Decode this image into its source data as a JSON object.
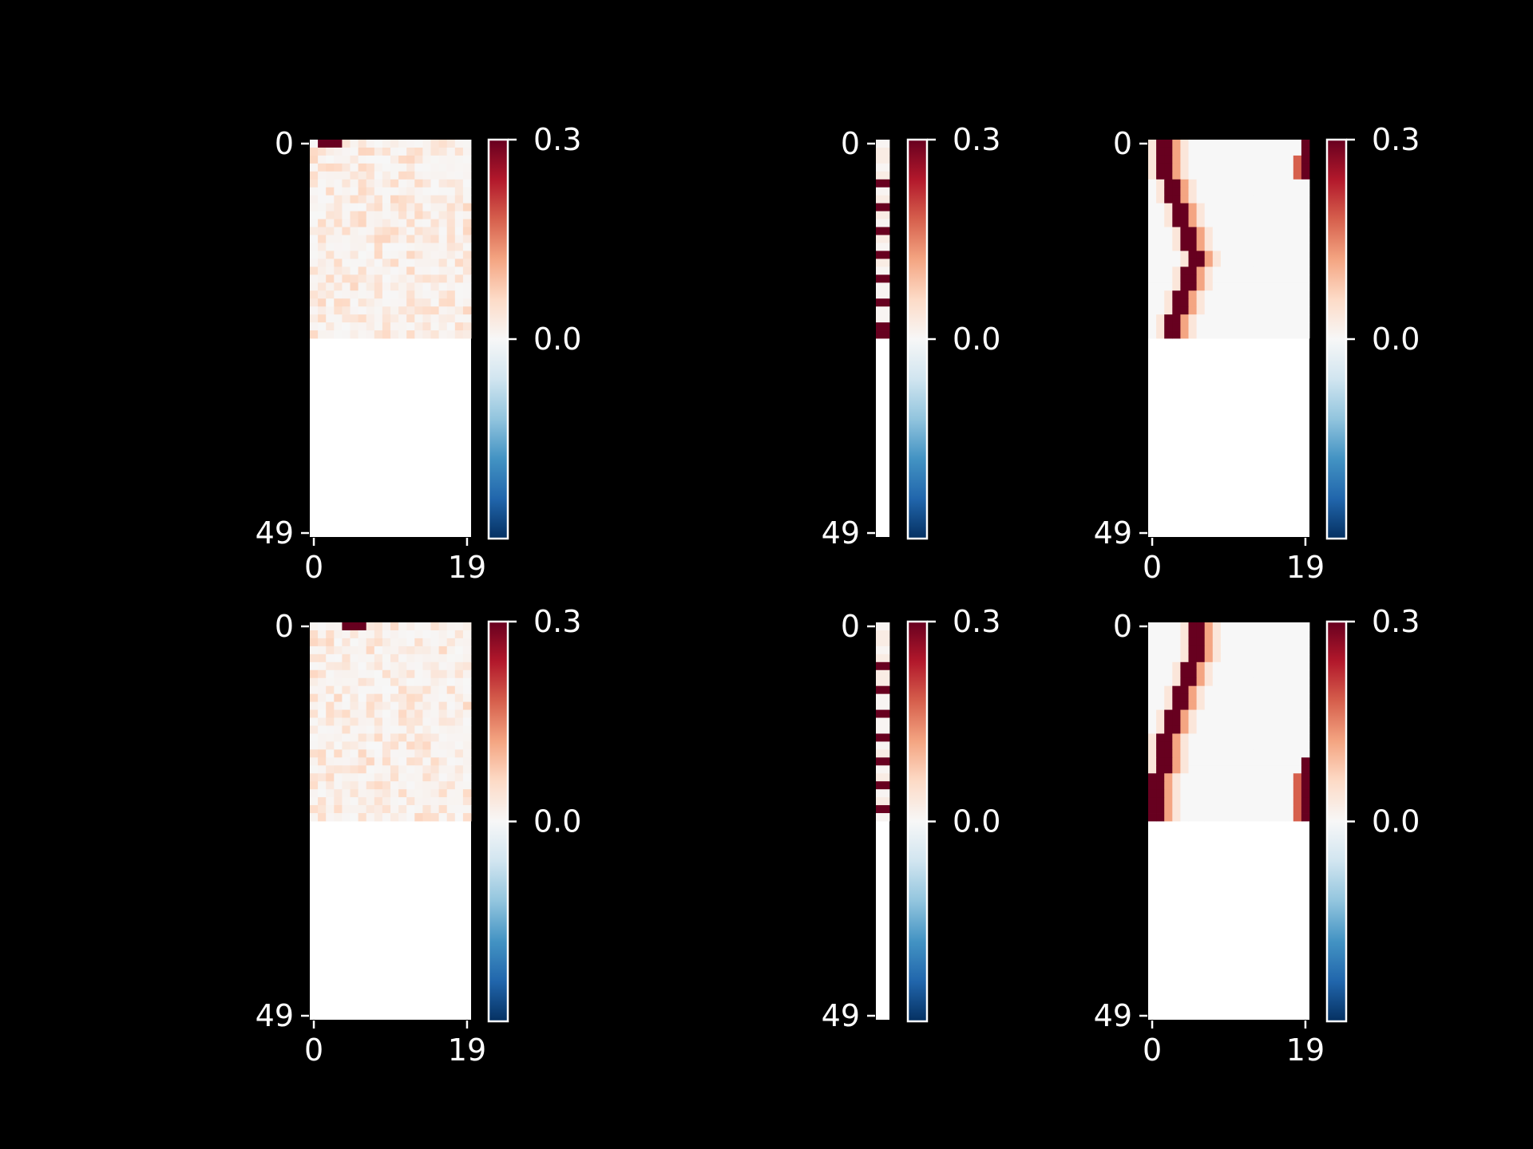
{
  "figure": {
    "background": "#000000",
    "foreground": "#ffffff"
  },
  "colormap": {
    "name": "RdBu_r",
    "stops": [
      "#053061",
      "#2166ac",
      "#4393c3",
      "#92c5de",
      "#d1e5f0",
      "#f7f7f7",
      "#fddbc7",
      "#f4a582",
      "#d6604d",
      "#b2182b",
      "#67001f"
    ]
  },
  "chart_data": [
    {
      "type": "heatmap",
      "panel": "top-left",
      "n_rows": 50,
      "n_cols": 20,
      "filled_rows": 25,
      "x_ticks": [
        "0",
        "19"
      ],
      "y_ticks": [
        "0",
        "49"
      ],
      "vmin": -0.25,
      "vmax": 0.25,
      "colorbar_ticks": [
        "0.3",
        "0.0"
      ],
      "pattern": "random",
      "hot_cells": [
        [
          0,
          1
        ],
        [
          0,
          2
        ],
        [
          0,
          3
        ]
      ]
    },
    {
      "type": "heatmap",
      "panel": "top-middle",
      "n_rows": 50,
      "n_cols": 1,
      "filled_rows": 25,
      "x_ticks": [],
      "y_ticks": [
        "0",
        "49"
      ],
      "vmin": -0.25,
      "vmax": 0.25,
      "colorbar_ticks": [
        "0.3",
        "0.0"
      ],
      "pattern": "column",
      "hot_rows": [
        5,
        8,
        11,
        14,
        17,
        20,
        23,
        24
      ]
    },
    {
      "type": "heatmap",
      "panel": "top-right",
      "n_rows": 50,
      "n_cols": 20,
      "filled_rows": 25,
      "x_ticks": [
        "0",
        "19"
      ],
      "y_ticks": [
        "0",
        "49"
      ],
      "vmin": -0.25,
      "vmax": 0.25,
      "colorbar_ticks": [
        "0.3",
        "0.0"
      ],
      "pattern": "path",
      "path_cols": [
        1,
        1,
        1,
        1,
        1,
        2,
        2,
        2,
        3,
        3,
        3,
        4,
        4,
        4,
        5,
        5,
        4,
        4,
        4,
        3,
        3,
        3,
        2,
        2,
        2
      ],
      "edge_col": 19,
      "edge_rows": [
        0,
        1,
        2,
        3,
        4
      ]
    },
    {
      "type": "heatmap",
      "panel": "bottom-left",
      "n_rows": 50,
      "n_cols": 20,
      "filled_rows": 25,
      "x_ticks": [
        "0",
        "19"
      ],
      "y_ticks": [
        "0",
        "49"
      ],
      "vmin": -0.25,
      "vmax": 0.25,
      "colorbar_ticks": [
        "0.3",
        "0.0"
      ],
      "pattern": "random",
      "hot_cells": [
        [
          0,
          4
        ],
        [
          0,
          5
        ],
        [
          0,
          6
        ]
      ]
    },
    {
      "type": "heatmap",
      "panel": "bottom-middle",
      "n_rows": 50,
      "n_cols": 1,
      "filled_rows": 25,
      "x_ticks": [],
      "y_ticks": [
        "0",
        "49"
      ],
      "vmin": -0.25,
      "vmax": 0.25,
      "colorbar_ticks": [
        "0.3",
        "0.0"
      ],
      "pattern": "column",
      "hot_rows": [
        5,
        8,
        11,
        14,
        17,
        20,
        23
      ]
    },
    {
      "type": "heatmap",
      "panel": "bottom-right",
      "n_rows": 50,
      "n_cols": 20,
      "filled_rows": 25,
      "x_ticks": [
        "0",
        "19"
      ],
      "y_ticks": [
        "0",
        "49"
      ],
      "vmin": -0.25,
      "vmax": 0.25,
      "colorbar_ticks": [
        "0.3",
        "0.0"
      ],
      "pattern": "path",
      "path_cols": [
        5,
        5,
        5,
        5,
        5,
        4,
        4,
        4,
        3,
        3,
        3,
        2,
        2,
        2,
        1,
        1,
        1,
        1,
        1,
        0,
        0,
        0,
        0,
        0,
        0
      ],
      "edge_col": 19,
      "edge_rows": [
        17,
        18,
        19,
        20,
        21,
        22,
        23,
        24
      ]
    }
  ]
}
